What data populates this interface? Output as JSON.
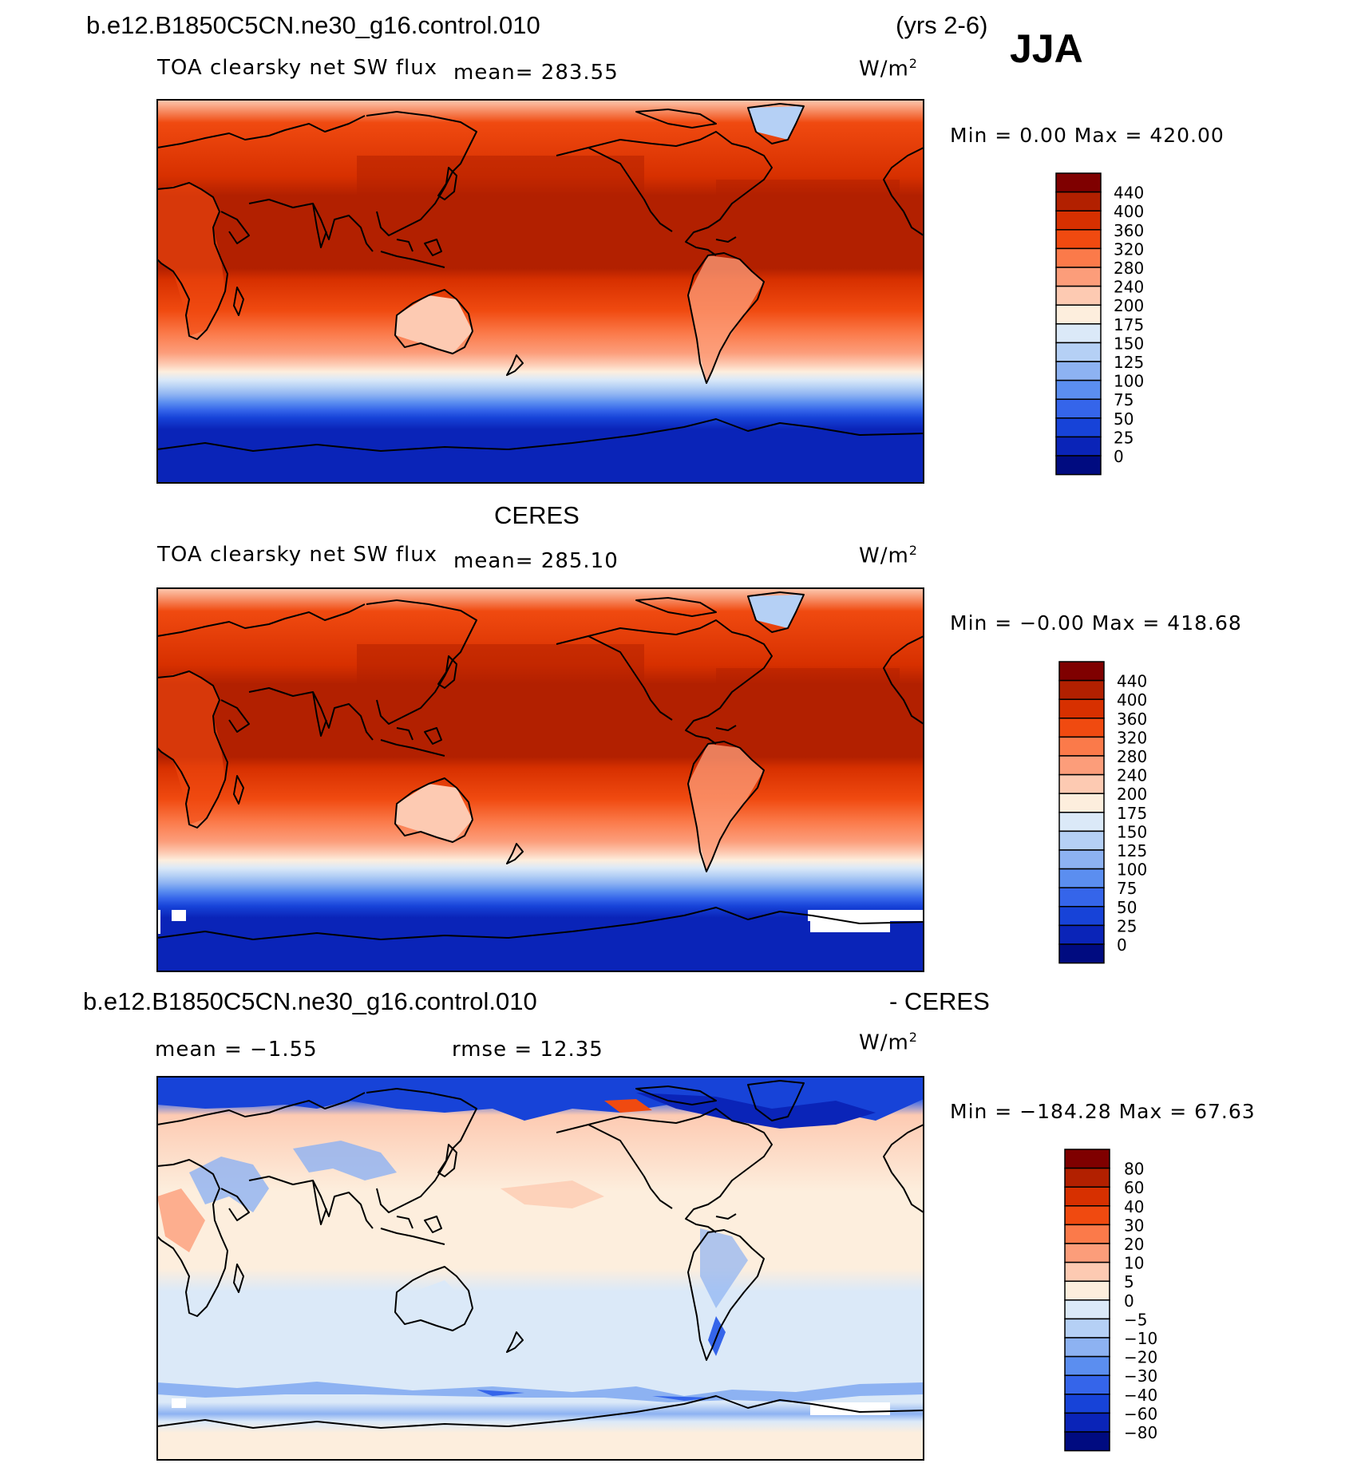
{
  "header": {
    "case": "b.e12.B1850C5CN.ne30_g16.control.010",
    "years": "(yrs 2-6)",
    "season": "JJA"
  },
  "panels": [
    {
      "dataset": "",
      "variable": "TOA clearsky net SW flux",
      "mean": "mean= 283.55",
      "units": "W/m",
      "units_exp": "2",
      "minmax": "Min =    0.00 Max = 420.00"
    },
    {
      "dataset": "CERES",
      "variable": "TOA clearsky net SW flux",
      "mean": "mean= 285.10",
      "units": "W/m",
      "units_exp": "2",
      "minmax": "Min =  −0.00 Max = 418.68"
    },
    {
      "dataset": "b.e12.B1850C5CN.ne30_g16.control.010",
      "dataset_right": "- CERES",
      "mean": "mean =   −1.55",
      "rmse": "rmse =   12.35",
      "units": "W/m",
      "units_exp": "2",
      "minmax": "Min = −184.28 Max =   67.63"
    }
  ],
  "colorbars": {
    "flux": {
      "labels": [
        "440",
        "400",
        "360",
        "320",
        "280",
        "240",
        "200",
        "175",
        "150",
        "125",
        "100",
        "75",
        "50",
        "25",
        "0"
      ],
      "colors": [
        "#7f0000",
        "#b22000",
        "#d73000",
        "#f04a10",
        "#fb7a4a",
        "#fc9d7a",
        "#fdcab2",
        "#fdeedd",
        "#dbe9f8",
        "#b5d0f5",
        "#8db2f2",
        "#5b8ef0",
        "#3565ea",
        "#1743d8",
        "#0a24b8",
        "#000b80"
      ]
    },
    "diff": {
      "labels": [
        "80",
        "60",
        "40",
        "30",
        "20",
        "10",
        "5",
        "0",
        "−5",
        "−10",
        "−20",
        "−30",
        "−40",
        "−60",
        "−80"
      ],
      "colors": [
        "#7f0000",
        "#b22000",
        "#d73000",
        "#f04a10",
        "#fb7a4a",
        "#fc9d7a",
        "#fdcab2",
        "#fdeedd",
        "#dbe9f8",
        "#b5d0f5",
        "#8db2f2",
        "#5b8ef0",
        "#3565ea",
        "#1743d8",
        "#0a24b8",
        "#000b80"
      ]
    }
  }
}
